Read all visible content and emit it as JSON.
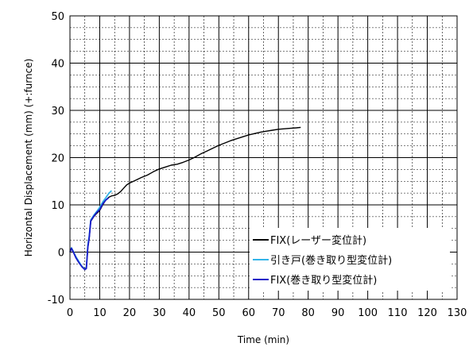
{
  "chart_data": {
    "type": "line",
    "xlabel": "Time (min)",
    "ylabel": "Horizontal Displacement (mm) (+:furnce)",
    "xlim": [
      0,
      130
    ],
    "ylim": [
      -10,
      50
    ],
    "x_ticks": [
      0,
      10,
      20,
      30,
      40,
      50,
      60,
      70,
      80,
      90,
      100,
      110,
      120,
      130
    ],
    "y_ticks": [
      -10,
      0,
      10,
      20,
      30,
      40,
      50
    ],
    "x_minor_step": 5,
    "y_minor_step": 2.5,
    "grid": "major solid, minor dashed",
    "legend_position": "bottom-right",
    "series": [
      {
        "name": "FIX(レーザー変位計)",
        "color": "#000000",
        "points": [
          [
            0,
            0
          ],
          [
            0.5,
            0.8
          ],
          [
            1,
            0.2
          ],
          [
            2,
            -1
          ],
          [
            3,
            -2
          ],
          [
            4,
            -3
          ],
          [
            5,
            -3.5
          ],
          [
            5.5,
            -3.3
          ],
          [
            6,
            1
          ],
          [
            6.5,
            3
          ],
          [
            7,
            6.5
          ],
          [
            8,
            7.5
          ],
          [
            9,
            8.2
          ],
          [
            10,
            8.8
          ],
          [
            11,
            10
          ],
          [
            12,
            11
          ],
          [
            13,
            11.6
          ],
          [
            14,
            11.9
          ],
          [
            15,
            12
          ],
          [
            16,
            12.3
          ],
          [
            17,
            12.8
          ],
          [
            18,
            13.5
          ],
          [
            19,
            14.2
          ],
          [
            20,
            14.6
          ],
          [
            22,
            15.2
          ],
          [
            24,
            15.8
          ],
          [
            26,
            16.3
          ],
          [
            28,
            17
          ],
          [
            30,
            17.6
          ],
          [
            32,
            18
          ],
          [
            34,
            18.4
          ],
          [
            36,
            18.6
          ],
          [
            38,
            19
          ],
          [
            40,
            19.5
          ],
          [
            42,
            20.1
          ],
          [
            44,
            20.8
          ],
          [
            46,
            21.4
          ],
          [
            48,
            22
          ],
          [
            50,
            22.6
          ],
          [
            52,
            23.1
          ],
          [
            54,
            23.6
          ],
          [
            56,
            24
          ],
          [
            58,
            24.4
          ],
          [
            60,
            24.8
          ],
          [
            62,
            25.1
          ],
          [
            64,
            25.4
          ],
          [
            66,
            25.6
          ],
          [
            68,
            25.8
          ],
          [
            70,
            26
          ],
          [
            72,
            26.1
          ],
          [
            74,
            26.2
          ],
          [
            76,
            26.3
          ],
          [
            77.5,
            26.4
          ]
        ]
      },
      {
        "name": "引き戸(巻き取り型変位計)",
        "color": "#33b4e8",
        "points": [
          [
            0,
            0
          ],
          [
            0.5,
            0.9
          ],
          [
            1,
            0.3
          ],
          [
            2,
            -1
          ],
          [
            3,
            -2
          ],
          [
            4,
            -3
          ],
          [
            5,
            -3.6
          ],
          [
            5.5,
            -3.4
          ],
          [
            6,
            1.5
          ],
          [
            6.5,
            3.5
          ],
          [
            7,
            6.8
          ],
          [
            8,
            7.8
          ],
          [
            9,
            8.6
          ],
          [
            10,
            9.5
          ],
          [
            11,
            10.6
          ],
          [
            12,
            11.5
          ],
          [
            13,
            12.4
          ],
          [
            14,
            13
          ]
        ]
      },
      {
        "name": "FIX(巻き取り型変位計)",
        "color": "#1a1ac8",
        "points": [
          [
            0,
            0
          ],
          [
            0.5,
            0.8
          ],
          [
            1,
            0.2
          ],
          [
            2,
            -1.2
          ],
          [
            3,
            -2.2
          ],
          [
            4,
            -3.1
          ],
          [
            5,
            -3.7
          ],
          [
            5.5,
            -3.5
          ],
          [
            6,
            1
          ],
          [
            6.5,
            3.2
          ],
          [
            7,
            6.6
          ],
          [
            8,
            7.6
          ],
          [
            9,
            8.4
          ],
          [
            10,
            9
          ],
          [
            11,
            10.2
          ],
          [
            12,
            11
          ],
          [
            13,
            11.5
          ]
        ]
      }
    ]
  }
}
